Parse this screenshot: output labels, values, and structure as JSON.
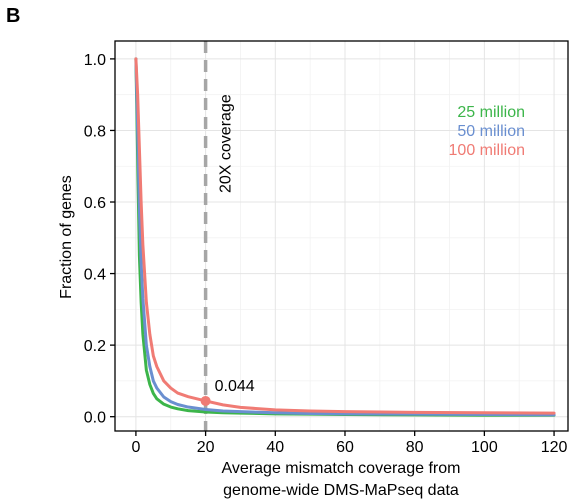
{
  "panel_label": "B",
  "chart_data": {
    "type": "line",
    "xlabel_lines": [
      "Average mismatch coverage from",
      "genome-wide DMS-MaPseq data"
    ],
    "ylabel": "Fraction of genes",
    "xlim": [
      -6,
      124
    ],
    "ylim": [
      -0.04,
      1.05
    ],
    "x_ticks": [
      0,
      20,
      40,
      60,
      80,
      100,
      120
    ],
    "y_ticks": [
      0.0,
      0.2,
      0.4,
      0.6,
      0.8,
      1.0
    ],
    "x_tick_labels": [
      "0",
      "20",
      "40",
      "60",
      "80",
      "100",
      "120"
    ],
    "y_tick_labels": [
      "0.0",
      "0.2",
      "0.4",
      "0.6",
      "0.8",
      "1.0"
    ],
    "grid": true,
    "legend_position": "top-right",
    "series": [
      {
        "name": "25 million",
        "color": "#3cb54a",
        "x": [
          0,
          0.5,
          1,
          1.5,
          2,
          3,
          4,
          5,
          6,
          8,
          10,
          12,
          15,
          20,
          25,
          30,
          40,
          50,
          60,
          80,
          100,
          120
        ],
        "y": [
          1.0,
          0.72,
          0.45,
          0.32,
          0.23,
          0.13,
          0.09,
          0.065,
          0.05,
          0.035,
          0.027,
          0.022,
          0.017,
          0.013,
          0.011,
          0.01,
          0.008,
          0.007,
          0.006,
          0.005,
          0.004,
          0.004
        ]
      },
      {
        "name": "50 million",
        "color": "#6a8fd0",
        "x": [
          0,
          0.5,
          1,
          1.5,
          2,
          3,
          4,
          5,
          6,
          8,
          10,
          12,
          15,
          20,
          25,
          30,
          40,
          50,
          60,
          80,
          100,
          120
        ],
        "y": [
          1.0,
          0.8,
          0.58,
          0.43,
          0.33,
          0.2,
          0.14,
          0.1,
          0.08,
          0.055,
          0.042,
          0.034,
          0.027,
          0.02,
          0.016,
          0.014,
          0.011,
          0.009,
          0.008,
          0.007,
          0.006,
          0.005
        ]
      },
      {
        "name": "100 million",
        "color": "#f07b74",
        "x": [
          0,
          0.5,
          1,
          1.5,
          2,
          3,
          4,
          5,
          6,
          8,
          10,
          12,
          15,
          20,
          25,
          30,
          40,
          50,
          60,
          80,
          100,
          120
        ],
        "y": [
          1.0,
          0.9,
          0.75,
          0.6,
          0.48,
          0.32,
          0.23,
          0.17,
          0.14,
          0.1,
          0.08,
          0.066,
          0.056,
          0.044,
          0.033,
          0.026,
          0.019,
          0.016,
          0.014,
          0.012,
          0.011,
          0.01
        ]
      }
    ],
    "vline": {
      "x": 20,
      "label": "20X coverage",
      "color": "#a6a6a6"
    },
    "highlight_point": {
      "x": 20,
      "y": 0.044,
      "label": "0.044",
      "color": "#f07b74"
    }
  }
}
